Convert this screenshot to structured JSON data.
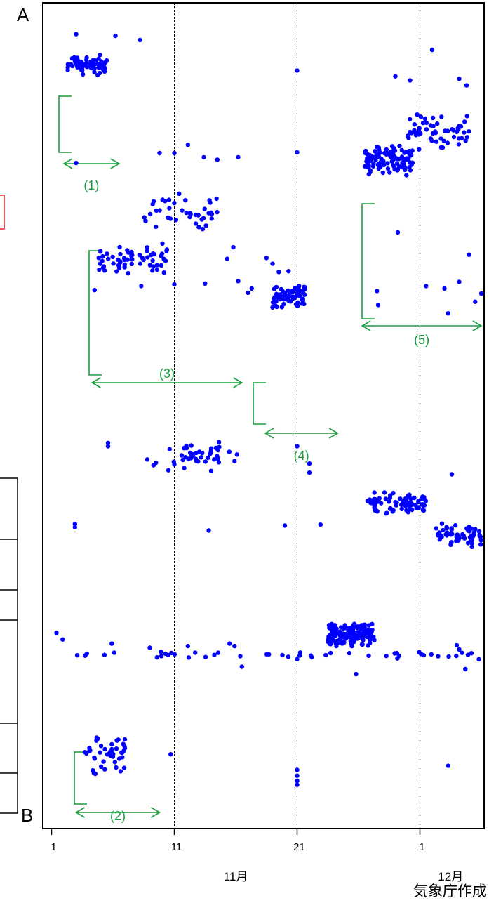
{
  "chart_data": {
    "type": "scatter",
    "axis_end_labels": {
      "top": "A",
      "bottom": "B"
    },
    "x_ticks": [
      {
        "day": 1,
        "label": "1"
      },
      {
        "day": 11,
        "label": "11"
      },
      {
        "day": 21,
        "label": "21"
      },
      {
        "day": 31,
        "label": "1"
      }
    ],
    "month_labels": [
      {
        "day": 16,
        "text": "11月"
      },
      {
        "day": 33.5,
        "text": "12月"
      }
    ],
    "source_credit": "気象庁作成",
    "grid_vertical_days": [
      11,
      21,
      31
    ],
    "point_color": "#0000ff",
    "annotation_color": "#1a9e3f",
    "annotations": [
      {
        "label": "(1)",
        "day_start": 2.0,
        "day_end": 6.5
      },
      {
        "label": "(2)",
        "day_start": 3.0,
        "day_end": 9.8
      },
      {
        "label": "(3)",
        "day_start": 4.3,
        "day_end": 16.5
      },
      {
        "label": "(4)",
        "day_start": 18.4,
        "day_end": 24.3
      },
      {
        "label": "(5)",
        "day_start": 26.3,
        "day_end": 36.0
      }
    ],
    "clusters": [
      {
        "name": "c1",
        "day_range": [
          2.3,
          5.5
        ],
        "pos_range": [
          0.91,
          0.94
        ],
        "count": 70
      },
      {
        "name": "c2",
        "day_range": [
          3.7,
          7.0
        ],
        "pos_range": [
          0.06,
          0.12
        ],
        "count": 45
      },
      {
        "name": "c3a",
        "day_range": [
          4.8,
          10.5
        ],
        "pos_range": [
          0.67,
          0.71
        ],
        "count": 60
      },
      {
        "name": "c3b",
        "day_range": [
          8.5,
          14.5
        ],
        "pos_range": [
          0.72,
          0.77
        ],
        "count": 40
      },
      {
        "name": "c4",
        "day_range": [
          19.0,
          21.8
        ],
        "pos_range": [
          0.63,
          0.66
        ],
        "count": 70
      },
      {
        "name": "c5a",
        "day_range": [
          26.5,
          30.5
        ],
        "pos_range": [
          0.79,
          0.83
        ],
        "count": 110
      },
      {
        "name": "c5b",
        "day_range": [
          30.0,
          35.0
        ],
        "pos_range": [
          0.82,
          0.87
        ],
        "count": 60
      },
      {
        "name": "c6",
        "day_range": [
          10.5,
          15.5
        ],
        "pos_range": [
          0.43,
          0.47
        ],
        "count": 40
      },
      {
        "name": "c7",
        "day_range": [
          26.7,
          31.5
        ],
        "pos_range": [
          0.38,
          0.41
        ],
        "count": 80
      },
      {
        "name": "c8",
        "day_range": [
          23.5,
          27.3
        ],
        "pos_range": [
          0.22,
          0.25
        ],
        "count": 170
      },
      {
        "name": "c9",
        "day_range": [
          32.3,
          36.0
        ],
        "pos_range": [
          0.34,
          0.37
        ],
        "count": 60
      },
      {
        "name": "c10",
        "day_range": [
          0.6,
          36.0
        ],
        "pos_range": [
          0.205,
          0.215
        ],
        "count": 40
      }
    ],
    "points": [
      [
        3.0,
        0.962
      ],
      [
        6.2,
        0.96
      ],
      [
        8.2,
        0.955
      ],
      [
        21.0,
        0.918
      ],
      [
        32.0,
        0.943
      ],
      [
        29.0,
        0.911
      ],
      [
        30.2,
        0.906
      ],
      [
        34.8,
        0.9
      ],
      [
        34.2,
        0.908
      ],
      [
        3.0,
        0.806
      ],
      [
        12.1,
        0.828
      ],
      [
        9.8,
        0.818
      ],
      [
        11.0,
        0.818
      ],
      [
        13.4,
        0.813
      ],
      [
        14.5,
        0.81
      ],
      [
        16.2,
        0.813
      ],
      [
        21.0,
        0.819
      ],
      [
        10.0,
        0.696
      ],
      [
        15.3,
        0.69
      ],
      [
        15.8,
        0.704
      ],
      [
        13.3,
        0.726
      ],
      [
        17.3,
        0.654
      ],
      [
        17.0,
        0.649
      ],
      [
        8.3,
        0.657
      ],
      [
        4.5,
        0.652
      ],
      [
        11.0,
        0.659
      ],
      [
        13.5,
        0.66
      ],
      [
        16.2,
        0.663
      ],
      [
        18.5,
        0.691
      ],
      [
        19.0,
        0.684
      ],
      [
        19.5,
        0.674
      ],
      [
        20.3,
        0.675
      ],
      [
        29.2,
        0.722
      ],
      [
        35.0,
        0.695
      ],
      [
        35.5,
        0.638
      ],
      [
        33.0,
        0.654
      ],
      [
        34.2,
        0.662
      ],
      [
        36.0,
        0.648
      ],
      [
        27.5,
        0.651
      ],
      [
        27.6,
        0.634
      ],
      [
        31.5,
        0.657
      ],
      [
        33.3,
        0.624
      ],
      [
        5.6,
        0.467
      ],
      [
        5.6,
        0.463
      ],
      [
        8.8,
        0.447
      ],
      [
        9.3,
        0.44
      ],
      [
        9.5,
        0.443
      ],
      [
        11.0,
        0.441
      ],
      [
        13.8,
        0.361
      ],
      [
        16.1,
        0.453
      ],
      [
        15.9,
        0.445
      ],
      [
        21.0,
        0.463
      ],
      [
        22.0,
        0.442
      ],
      [
        22.0,
        0.431
      ],
      [
        33.6,
        0.429
      ],
      [
        2.9,
        0.369
      ],
      [
        2.9,
        0.365
      ],
      [
        20.0,
        0.367
      ],
      [
        22.9,
        0.368
      ],
      [
        1.4,
        0.237
      ],
      [
        1.9,
        0.229
      ],
      [
        5.9,
        0.224
      ],
      [
        6.1,
        0.213
      ],
      [
        9.0,
        0.219
      ],
      [
        9.9,
        0.214
      ],
      [
        10.5,
        0.21
      ],
      [
        12.1,
        0.221
      ],
      [
        15.5,
        0.224
      ],
      [
        15.9,
        0.221
      ],
      [
        18.7,
        0.211
      ],
      [
        19.8,
        0.21
      ],
      [
        16.5,
        0.196
      ],
      [
        21.0,
        0.205
      ],
      [
        25.8,
        0.187
      ],
      [
        34.0,
        0.222
      ],
      [
        34.2,
        0.217
      ],
      [
        34.7,
        0.193
      ],
      [
        35.8,
        0.205
      ],
      [
        33.3,
        0.076
      ],
      [
        10.7,
        0.09
      ],
      [
        21.0,
        0.071
      ],
      [
        21.0,
        0.064
      ],
      [
        21.0,
        0.058
      ],
      [
        21.0,
        0.053
      ]
    ]
  }
}
